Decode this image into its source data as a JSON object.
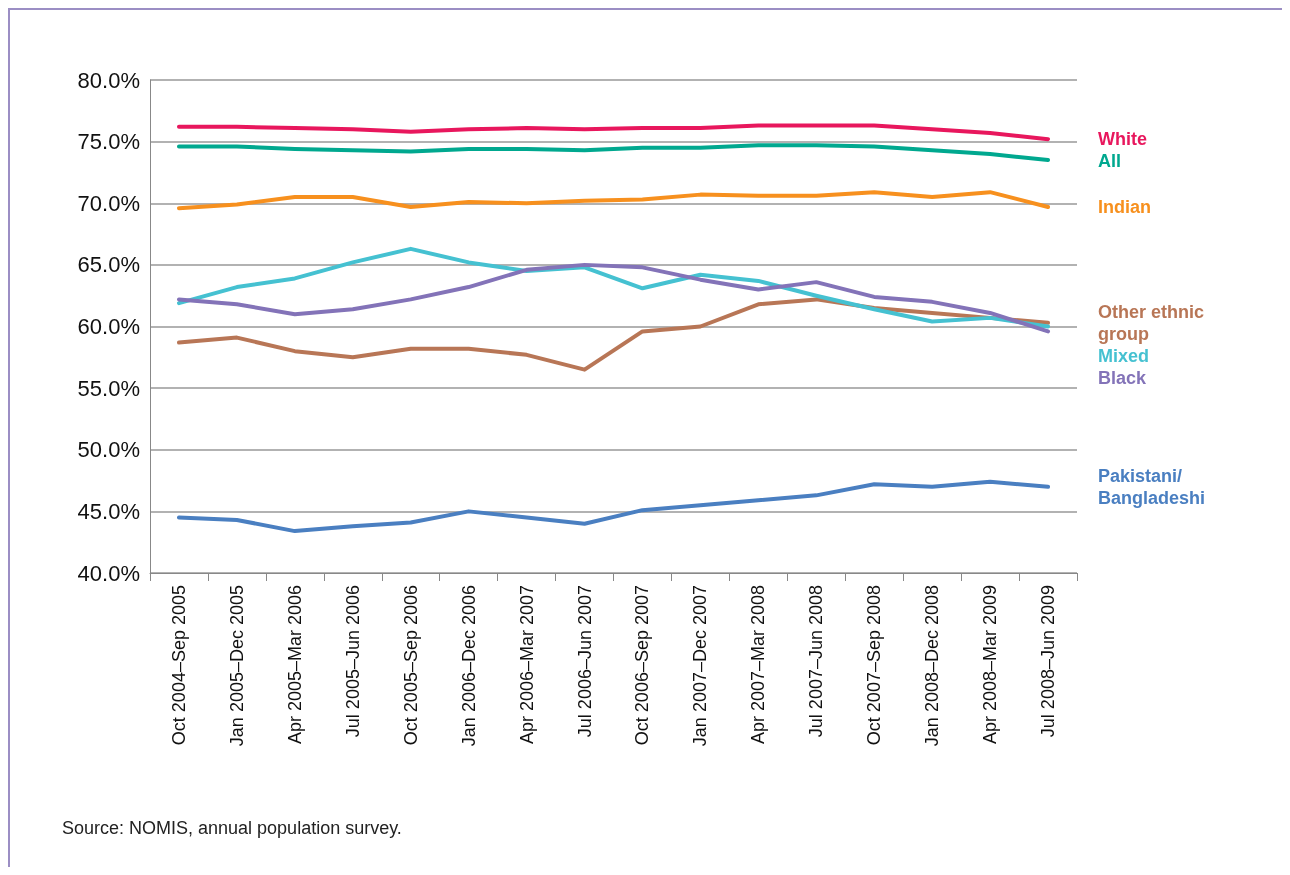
{
  "chart_data": {
    "type": "line",
    "categories": [
      "Oct 2004–Sep 2005",
      "Jan 2005–Dec 2005",
      "Apr 2005–Mar 2006",
      "Jul 2005–Jun 2006",
      "Oct 2005–Sep 2006",
      "Jan 2006–Dec 2006",
      "Apr 2006–Mar 2007",
      "Jul 2006–Jun 2007",
      "Oct 2006–Sep 2007",
      "Jan 2007–Dec 2007",
      "Apr 2007–Mar 2008",
      "Jul 2007–Jun 2008",
      "Oct 2007–Sep 2008",
      "Jan 2008–Dec 2008",
      "Apr 2008–Mar 2009",
      "Jul 2008–Jun 2009"
    ],
    "series": [
      {
        "name": "White",
        "color": "#e8175d",
        "values": [
          76.2,
          76.2,
          76.1,
          76.0,
          75.8,
          76.0,
          76.1,
          76.0,
          76.1,
          76.1,
          76.3,
          76.3,
          76.3,
          76.0,
          75.7,
          75.2
        ]
      },
      {
        "name": "All",
        "color": "#00a88f",
        "values": [
          74.6,
          74.6,
          74.4,
          74.3,
          74.2,
          74.4,
          74.4,
          74.3,
          74.5,
          74.5,
          74.7,
          74.7,
          74.6,
          74.3,
          74.0,
          73.5
        ]
      },
      {
        "name": "Indian",
        "color": "#f7901e",
        "values": [
          69.6,
          69.9,
          70.5,
          70.5,
          69.7,
          70.1,
          70.0,
          70.2,
          70.3,
          70.7,
          70.6,
          70.6,
          70.9,
          70.5,
          70.9,
          69.7
        ]
      },
      {
        "name": "Other ethnic\ngroup",
        "color": "#b87656",
        "values": [
          58.7,
          59.1,
          58.0,
          57.5,
          58.2,
          58.2,
          57.7,
          56.5,
          59.6,
          60.0,
          61.8,
          62.2,
          61.5,
          61.1,
          60.7,
          60.3
        ]
      },
      {
        "name": "Mixed",
        "color": "#45c1d1",
        "values": [
          61.9,
          63.2,
          63.9,
          65.2,
          66.3,
          65.2,
          64.5,
          64.8,
          63.1,
          64.2,
          63.7,
          62.5,
          61.4,
          60.4,
          60.7,
          60.0
        ]
      },
      {
        "name": "Black",
        "color": "#8373b8",
        "values": [
          62.2,
          61.8,
          61.0,
          61.4,
          62.2,
          63.2,
          64.6,
          65.0,
          64.8,
          63.8,
          63.0,
          63.6,
          62.4,
          62.0,
          61.1,
          59.6
        ]
      },
      {
        "name": "Pakistani/\nBangladeshi",
        "color": "#4a7fc1",
        "values": [
          44.5,
          44.3,
          43.4,
          43.8,
          44.1,
          45.0,
          44.5,
          44.0,
          45.1,
          45.5,
          45.9,
          46.3,
          47.2,
          47.0,
          47.4,
          47.0
        ]
      }
    ],
    "ylim": [
      40,
      80
    ],
    "yticks": [
      {
        "value": 40,
        "label": "40.0%"
      },
      {
        "value": 45,
        "label": "45.0%"
      },
      {
        "value": 50,
        "label": "50.0%"
      },
      {
        "value": 55,
        "label": "55.0%"
      },
      {
        "value": 60,
        "label": "60.0%"
      },
      {
        "value": 65,
        "label": "65.0%"
      },
      {
        "value": 70,
        "label": "70.0%"
      },
      {
        "value": 75,
        "label": "75.0%"
      },
      {
        "value": 80,
        "label": "80.0%"
      }
    ],
    "grid": "y",
    "marker": "none",
    "line_style": "solid",
    "annotations": [
      "Source: NOMIS, annual population survey."
    ]
  }
}
